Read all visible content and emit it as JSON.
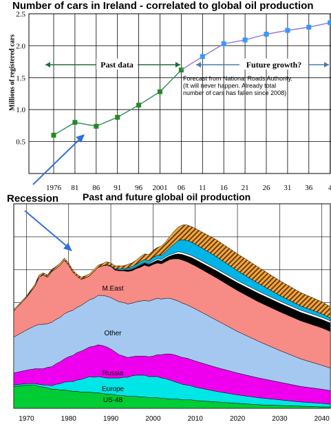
{
  "chart_data": [
    {
      "type": "line",
      "title": "Number of cars in Ireland - correlated to global oil production",
      "ylabel": "Millions of registered cars",
      "xlabel": "",
      "ylim": [
        0,
        2.5
      ],
      "y_ticks": [
        "0.5",
        "1.0",
        "1.5",
        "2.0",
        "2.5"
      ],
      "categories": [
        "1976",
        "81",
        "86",
        "91",
        "96",
        "2001",
        "06",
        "11",
        "16",
        "21",
        "26",
        "31",
        "36",
        "4"
      ],
      "grid": true,
      "series": [
        {
          "name": "Past data",
          "color": "#2e8b57",
          "marker_color": "#228b22",
          "x": [
            "1976",
            "81",
            "86",
            "91",
            "96",
            "2001",
            "06"
          ],
          "values": [
            0.6,
            0.8,
            0.74,
            0.88,
            1.07,
            1.28,
            1.62
          ]
        },
        {
          "name": "Future growth?",
          "color": "#9370db",
          "marker_color": "#3399ff",
          "x": [
            "06",
            "11",
            "16",
            "21",
            "26",
            "31",
            "36",
            "4"
          ],
          "values": [
            1.62,
            1.83,
            2.03,
            2.09,
            2.18,
            2.24,
            2.29,
            2.36
          ]
        }
      ],
      "annotations": {
        "past": "Past data",
        "future": "Future growth?",
        "note": [
          "Forecast from National Roads Authority.",
          "(It will never happen. Already total",
          "number of cars has fallen since 2008)"
        ]
      }
    },
    {
      "type": "area",
      "title": "Past and future global oil production",
      "x_ticks": [
        "1970",
        "1980",
        "1990",
        "2000",
        "2010",
        "2020",
        "2030",
        "2040"
      ],
      "xlim": [
        1967,
        2042
      ],
      "grid": true,
      "x": [
        1967,
        1970,
        1972,
        1973,
        1974,
        1975,
        1976,
        1977,
        1978,
        1979,
        1980,
        1981,
        1982,
        1983,
        1984,
        1985,
        1986,
        1987,
        1988,
        1989,
        1990,
        1991,
        1992,
        1993,
        1994,
        1995,
        1996,
        1997,
        1998,
        1999,
        2000,
        2001,
        2002,
        2003,
        2004,
        2005,
        2006,
        2007,
        2008,
        2009,
        2010,
        2015,
        2020,
        2025,
        2030,
        2035,
        2040,
        2042
      ],
      "series": [
        {
          "name": "US-48",
          "color": "#00cc33",
          "values": [
            31,
            33,
            33,
            31,
            30,
            29,
            27,
            27,
            26,
            26,
            25,
            24,
            24,
            23,
            23,
            23,
            22,
            22,
            21,
            20,
            20,
            19,
            18,
            18,
            17,
            17,
            17,
            16,
            16,
            15,
            15,
            15,
            14,
            14,
            13,
            13,
            13,
            12,
            12,
            12,
            11,
            9,
            7,
            5,
            4,
            3,
            2,
            2
          ]
        },
        {
          "name": "Europe",
          "color": "#00e5e5",
          "values": [
            2,
            2,
            2,
            3,
            3,
            4,
            5,
            7,
            9,
            11,
            13,
            14,
            16,
            18,
            20,
            22,
            22,
            23,
            23,
            23,
            23,
            24,
            25,
            26,
            27,
            29,
            30,
            31,
            31,
            30,
            30,
            30,
            29,
            28,
            27,
            25,
            23,
            22,
            21,
            20,
            19,
            15,
            12,
            10,
            8,
            6,
            5,
            4
          ]
        },
        {
          "name": "Russia",
          "color": "#ee00ee",
          "values": [
            17,
            19,
            21,
            22,
            23,
            25,
            27,
            29,
            31,
            33,
            35,
            37,
            39,
            40,
            41,
            42,
            44,
            45,
            45,
            44,
            41,
            37,
            33,
            30,
            28,
            27,
            27,
            27,
            27,
            28,
            29,
            31,
            33,
            35,
            37,
            38,
            38,
            38,
            38,
            37,
            37,
            34,
            31,
            28,
            25,
            22,
            20,
            19
          ]
        },
        {
          "name": "Other",
          "color": "#a5c8f0",
          "values": [
            51,
            57,
            61,
            63,
            63,
            62,
            63,
            63,
            63,
            64,
            64,
            64,
            64,
            65,
            66,
            67,
            68,
            70,
            71,
            72,
            73,
            74,
            75,
            76,
            76,
            76,
            77,
            78,
            79,
            79,
            80,
            80,
            79,
            79,
            79,
            78,
            78,
            77,
            76,
            75,
            74,
            67,
            59,
            52,
            45,
            39,
            34,
            32
          ]
        },
        {
          "name": "M.East",
          "color": "#f78b86",
          "values": [
            37,
            46,
            56,
            67,
            70,
            66,
            72,
            72,
            74,
            76,
            66,
            54,
            44,
            37,
            35,
            34,
            38,
            40,
            42,
            44,
            44,
            42,
            44,
            45,
            46,
            46,
            47,
            48,
            50,
            49,
            50,
            50,
            50,
            52,
            55,
            58,
            60,
            61,
            61,
            61,
            61,
            60,
            58,
            56,
            55,
            54,
            53,
            52
          ]
        },
        {
          "name": "",
          "color": "#000000",
          "values": [
            0,
            0,
            0,
            0,
            0,
            0,
            0,
            0,
            0,
            0,
            0,
            0,
            0,
            0,
            0,
            0,
            0,
            0,
            0,
            0,
            0,
            1,
            1,
            1,
            2,
            2,
            2,
            3,
            3,
            3,
            3,
            4,
            4,
            5,
            5,
            6,
            7,
            8,
            8,
            9,
            9,
            10,
            11,
            12,
            12,
            12,
            12,
            12
          ]
        },
        {
          "name": "",
          "color": "#ffffff",
          "values": [
            0,
            0,
            0,
            0,
            0,
            0,
            0,
            0,
            0,
            0,
            0,
            0,
            0,
            0,
            0,
            0,
            0,
            0,
            0,
            0,
            0,
            0,
            0,
            0,
            1,
            1,
            1,
            1,
            1,
            1,
            2,
            2,
            2,
            2,
            2,
            2,
            3,
            3,
            3,
            3,
            3,
            3,
            3,
            3,
            3,
            3,
            3,
            3
          ]
        },
        {
          "name": "",
          "color": "#00b4e8",
          "values": [
            0,
            0,
            0,
            0,
            0,
            0,
            0,
            0,
            0,
            0,
            0,
            0,
            0,
            0,
            0,
            0,
            0,
            0,
            0,
            1,
            1,
            1,
            2,
            2,
            2,
            3,
            3,
            4,
            4,
            4,
            5,
            5,
            6,
            7,
            10,
            13,
            16,
            18,
            19,
            19,
            19,
            17,
            14,
            11,
            8,
            6,
            5,
            4
          ]
        },
        {
          "name": "",
          "color": "#d2851e",
          "values": [
            2,
            2,
            3,
            3,
            3,
            3,
            3,
            3,
            3,
            3,
            3,
            3,
            3,
            3,
            3,
            3,
            3,
            3,
            3,
            4,
            4,
            4,
            4,
            4,
            5,
            5,
            6,
            7,
            8,
            9,
            10,
            11,
            13,
            14,
            16,
            18,
            19,
            21,
            22,
            22,
            22,
            24,
            24,
            23,
            21,
            19,
            17,
            16
          ]
        }
      ],
      "labels": {
        "meast": "M.East",
        "other": "Other",
        "russia": "Russia",
        "europe": "Europe",
        "us48": "US-48"
      },
      "annotation": "Recession"
    }
  ]
}
